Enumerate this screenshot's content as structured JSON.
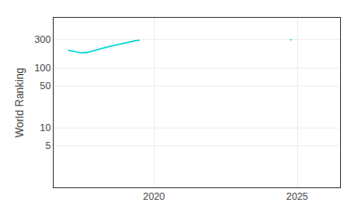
{
  "chart_data": {
    "type": "line",
    "ylabel": "World Ranking",
    "series": [
      {
        "color": "#00d4d4",
        "x": [
          2017.0,
          2017.1,
          2017.2,
          2017.3,
          2017.35,
          2017.4,
          2017.45,
          2017.5,
          2017.55,
          2017.6,
          2017.65,
          2017.7,
          2017.75,
          2017.8,
          2017.85,
          2017.9,
          2017.95,
          2018.0,
          2018.1,
          2018.2,
          2018.3,
          2018.4,
          2018.5,
          2018.6,
          2018.7,
          2018.8,
          2018.9,
          2019.0,
          2019.1,
          2019.2,
          2019.3,
          2019.4,
          2019.5
        ],
        "values": [
          200,
          198,
          192,
          188,
          185,
          183,
          181,
          183,
          186,
          184,
          182,
          185,
          188,
          192,
          194,
          196,
          198,
          200,
          208,
          215,
          222,
          228,
          234,
          240,
          248,
          256,
          262,
          268,
          275,
          280,
          285,
          290,
          295
        ]
      },
      {
        "color": "#00d4d4",
        "x": [
          2024.75,
          2024.8
        ],
        "values": [
          298,
          300
        ]
      }
    ],
    "log": "y",
    "xlim": [
      2016.5,
      2026.5
    ],
    "xticks": [
      2020,
      2025
    ],
    "ylim": [
      1,
      700
    ],
    "yticks": [
      5,
      10,
      50,
      100,
      300
    ],
    "grid": true
  }
}
